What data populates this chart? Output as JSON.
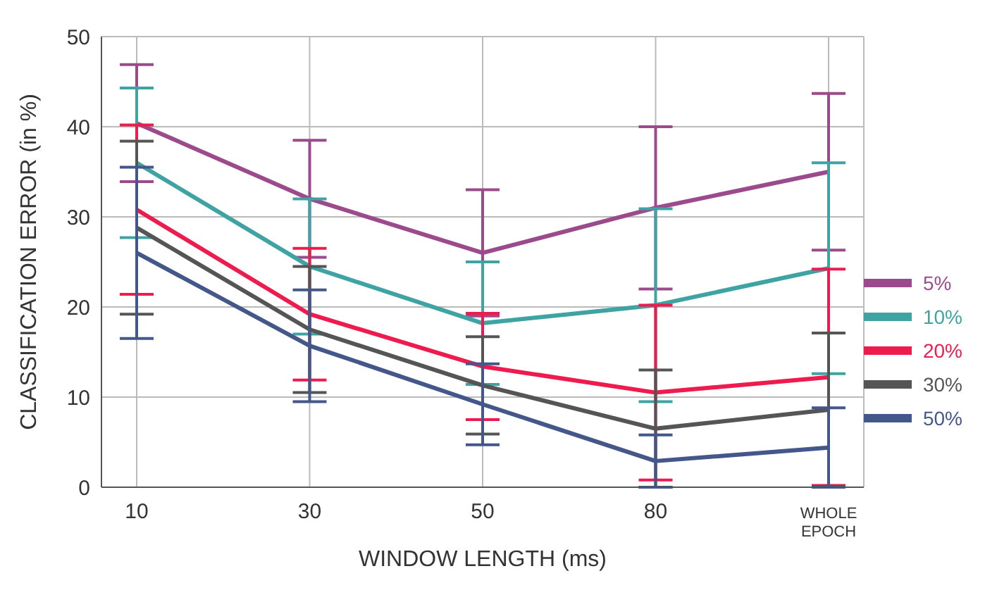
{
  "chart_data": {
    "type": "line",
    "xlabel": "WINDOW LENGTH (ms)",
    "ylabel": "CLASSIFICATION ERROR (in %)",
    "categories": [
      "10",
      "30",
      "50",
      "80",
      "WHOLE EPOCH"
    ],
    "ylim": [
      0,
      50
    ],
    "yticks": [
      0,
      10,
      20,
      30,
      40,
      50
    ],
    "grid": true,
    "legend": "right",
    "marker": "none",
    "line_style": "solid",
    "series": [
      {
        "name": "5%",
        "color": "#9b4a8c",
        "values": [
          40.4,
          32,
          26,
          31,
          35
        ],
        "errors": [
          6.5,
          6.5,
          7,
          9,
          8.7
        ]
      },
      {
        "name": "10%",
        "color": "#3fa3a3",
        "values": [
          36,
          24.5,
          18.2,
          20.2,
          24.3
        ],
        "errors": [
          8.3,
          7.5,
          6.8,
          10.7,
          11.7
        ]
      },
      {
        "name": "20%",
        "color": "#ee1c4e",
        "values": [
          30.8,
          19.2,
          13.4,
          10.5,
          12.2
        ],
        "errors": [
          9.4,
          7.3,
          5.9,
          9.7,
          12
        ]
      },
      {
        "name": "30%",
        "color": "#555555",
        "values": [
          28.8,
          17.5,
          11.3,
          6.5,
          8.6
        ],
        "errors": [
          9.6,
          7,
          5.4,
          6.5,
          8.5
        ]
      },
      {
        "name": "50%",
        "color": "#43578a",
        "values": [
          26,
          15.7,
          9.2,
          2.9,
          4.4
        ],
        "errors": [
          9.5,
          6.2,
          4.5,
          2.9,
          4.4
        ]
      }
    ]
  }
}
